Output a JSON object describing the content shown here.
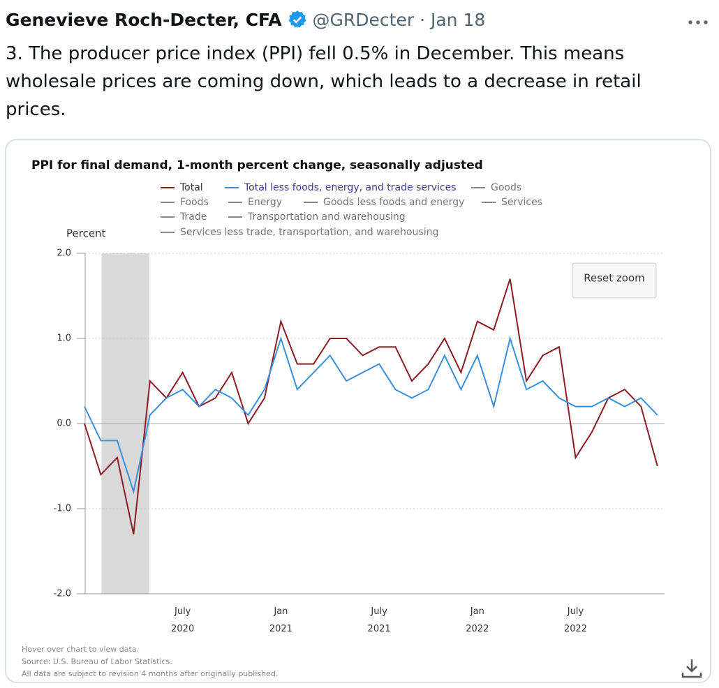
{
  "tweet": {
    "author": "Genevieve Roch-Decter, CFA",
    "handle": "@GRDecter",
    "date": "· Jan 18",
    "text": "3. The producer price index (PPI) fell 0.5% in December. This means wholesale prices are coming down, which leads to a decrease in retail prices."
  },
  "chart_data": {
    "type": "line",
    "title": "PPI for final demand, 1-month percent change, seasonally adjusted",
    "y_label": "Percent",
    "categories": [
      null,
      null,
      null,
      null,
      null,
      null,
      "July 2020",
      null,
      null,
      null,
      null,
      null,
      "Jan 2021",
      null,
      null,
      null,
      null,
      null,
      "July 2021",
      null,
      null,
      null,
      null,
      null,
      "Jan 2022",
      null,
      null,
      null,
      null,
      null,
      "July 2022",
      null,
      null,
      null,
      null,
      null
    ],
    "series": [
      {
        "name": "Total",
        "color": "#8b1c24",
        "values": [
          0.0,
          -0.6,
          -0.4,
          -1.3,
          0.5,
          0.3,
          0.6,
          0.2,
          0.3,
          0.6,
          0.0,
          0.3,
          1.2,
          0.7,
          0.7,
          1.0,
          1.0,
          0.8,
          0.9,
          0.9,
          0.5,
          0.7,
          1.0,
          0.6,
          1.2,
          1.1,
          1.7,
          0.5,
          0.8,
          0.9,
          -0.4,
          -0.1,
          0.3,
          0.4,
          0.2,
          -0.5
        ]
      },
      {
        "name": "Total less foods, energy, and trade services",
        "color": "#3a8fdc",
        "values": [
          0.2,
          -0.2,
          -0.2,
          -0.8,
          0.1,
          0.3,
          0.4,
          0.2,
          0.4,
          0.3,
          0.1,
          0.4,
          1.0,
          0.4,
          0.6,
          0.8,
          0.5,
          0.6,
          0.7,
          0.4,
          0.3,
          0.4,
          0.8,
          0.4,
          0.8,
          0.2,
          1.0,
          0.4,
          0.5,
          0.3,
          0.2,
          0.2,
          0.3,
          0.2,
          0.3,
          0.1
        ]
      }
    ],
    "hidden_series": [
      "Goods",
      "Foods",
      "Energy",
      "Goods less foods and energy",
      "Services",
      "Trade",
      "Transportation and warehousing",
      "Services less trade, transportation, and warehousing"
    ],
    "shaded_range": [
      1,
      4
    ],
    "ylim": [
      -2,
      2
    ],
    "yticks": [
      {
        "value": 2,
        "label": "2.0"
      },
      {
        "value": 1,
        "label": "1.0"
      },
      {
        "value": 0,
        "label": "0.0"
      },
      {
        "value": -1,
        "label": "-1.0"
      },
      {
        "value": -2,
        "label": "-2.0"
      }
    ],
    "grid": true,
    "button": "Reset zoom",
    "notes": [
      "Hover over chart to view data.",
      "Source: U.S. Bureau of Labor Statistics.",
      "All data are subject to revision 4 months after originally published."
    ]
  }
}
